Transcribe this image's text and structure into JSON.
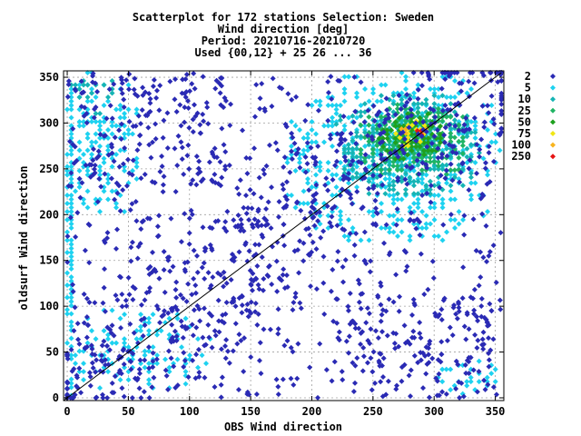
{
  "title_lines": [
    "Scatterplot for  172 stations Selection: Sweden",
    "Wind direction [deg]",
    "Period: 20210716-20210720",
    "Used {00,12} + 25 26 ... 36"
  ],
  "chart_data": {
    "type": "scatter",
    "xlabel": "OBS Wind direction",
    "ylabel": "oldsurf Wind direction",
    "xlim": [
      -3,
      357
    ],
    "ylim": [
      -3,
      357
    ],
    "xticks": [
      0,
      50,
      100,
      150,
      200,
      250,
      300,
      350
    ],
    "yticks": [
      0,
      50,
      100,
      150,
      200,
      250,
      300,
      350
    ],
    "grid": true,
    "diagonal_line": true,
    "legend_position": "right",
    "legend": [
      {
        "label": "2",
        "color": "#2a2ab4"
      },
      {
        "label": "5",
        "color": "#1ed2f0"
      },
      {
        "label": "10",
        "color": "#16b4b4"
      },
      {
        "label": "25",
        "color": "#20b464"
      },
      {
        "label": "50",
        "color": "#1ea01e"
      },
      {
        "label": "75",
        "color": "#f0e614"
      },
      {
        "label": "100",
        "color": "#f8b41e"
      },
      {
        "label": "250",
        "color": "#e61414"
      }
    ],
    "density_regions": [
      {
        "class": "5",
        "x": [
          180,
          355
        ],
        "y": [
          170,
          355
        ],
        "fill": 0.35
      },
      {
        "class": "5",
        "x": [
          0,
          60
        ],
        "y": [
          200,
          355
        ],
        "fill": 0.35
      },
      {
        "class": "5",
        "x": [
          0,
          120
        ],
        "y": [
          0,
          100
        ],
        "fill": 0.25
      },
      {
        "class": "5",
        "x": [
          0,
          5
        ],
        "y": [
          0,
          355
        ],
        "fill": 0.9
      },
      {
        "class": "5",
        "x": [
          300,
          355
        ],
        "y": [
          0,
          40
        ],
        "fill": 0.3
      },
      {
        "class": "10",
        "x": [
          220,
          340
        ],
        "y": [
          220,
          330
        ],
        "fill": 0.55
      },
      {
        "class": "10",
        "x": [
          0,
          40
        ],
        "y": [
          300,
          355
        ],
        "fill": 0.3
      },
      {
        "class": "25",
        "x": [
          240,
          330
        ],
        "y": [
          240,
          320
        ],
        "fill": 0.6
      },
      {
        "class": "50",
        "x": [
          255,
          310
        ],
        "y": [
          260,
          310
        ],
        "fill": 0.7
      },
      {
        "class": "75",
        "x": [
          262,
          300
        ],
        "y": [
          272,
          302
        ],
        "fill": 0.45
      },
      {
        "class": "100",
        "x": [
          270,
          295
        ],
        "y": [
          280,
          298
        ],
        "fill": 0.3
      },
      {
        "class": "250",
        "x": [
          283,
          290
        ],
        "y": [
          285,
          296
        ],
        "fill": 0.6
      }
    ],
    "scatter_points_class_2": {
      "count": 1400,
      "x": [
        0,
        355
      ],
      "y": [
        0,
        355
      ]
    }
  }
}
